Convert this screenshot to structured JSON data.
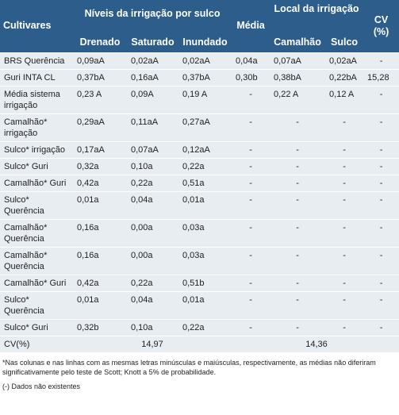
{
  "header": {
    "cultivares": "Cultivares",
    "irrigation_group": "Níveis da irrigação por sulco",
    "media": "Média",
    "local_group": "Local da irrigação",
    "cv": "CV (%)",
    "subheaders": [
      "Drenado",
      "Saturado",
      "Inundado",
      "Camalhão",
      "Sulco"
    ]
  },
  "table": {
    "rows": [
      [
        "BRS Querência",
        "0,09aA",
        "0,02aA",
        "0,02aA",
        "0,04a",
        "0,07aA",
        "0,02aA",
        "-"
      ],
      [
        "Guri INTA CL",
        "0,37bA",
        "0,16aA",
        "0,37bA",
        "0,30b",
        "0,38bA",
        "0,22bA",
        "15,28"
      ],
      [
        "Média sistema irrigação",
        "0,23 A",
        "0,09A",
        "0,19 A",
        "-",
        "0,22 A",
        "0,12 A",
        "-"
      ],
      [
        "Camalhão* irrigação",
        "0,29aA",
        "0,11aA",
        "0,27aA",
        "-",
        "-",
        "-",
        "-"
      ],
      [
        "Sulco* irrigação",
        "0,17aA",
        "0,07aA",
        "0,12aA",
        "-",
        "-",
        "-",
        "-"
      ],
      [
        "Sulco* Guri",
        "0,32a",
        "0,10a",
        "0,22a",
        "-",
        "-",
        "-",
        "-"
      ],
      [
        "Camalhão* Guri",
        "0,42a",
        "0,22a",
        "0,51a",
        "-",
        "-",
        "-",
        "-"
      ],
      [
        "Sulco* Querência",
        "0,01a",
        "0,04a",
        "0,01a",
        "-",
        "-",
        "-",
        "-"
      ],
      [
        "Camalhão* Querência",
        "0,16a",
        "0,00a",
        "0,03a",
        "-",
        "-",
        "-",
        "-"
      ],
      [
        "Camalhão* Querência",
        "0,16a",
        "0,00a",
        "0,03a",
        "-",
        "-",
        "-",
        "-"
      ],
      [
        "Camalhão* Guri",
        "0,42a",
        "0,22a",
        "0,51b",
        "-",
        "-",
        "-",
        "-"
      ],
      [
        "Sulco* Querência",
        "0,01a",
        "0,04a",
        "0,01a",
        "-",
        "-",
        "-",
        "-"
      ],
      [
        "Sulco* Guri",
        "0,32b",
        "0,10a",
        "0,22a",
        "-",
        "-",
        "-",
        "-"
      ]
    ],
    "cv_row": [
      "CV(%)",
      "14,97",
      "14,36"
    ]
  },
  "footnotes": [
    "*Nas colunas e nas linhas com as mesmas letras minúsculas e maiúsculas, respectivamente, as médias não diferiram significativamente pelo teste de Scott; Knott a 5% de probabilidade.",
    "(-) Dados não existentes"
  ]
}
